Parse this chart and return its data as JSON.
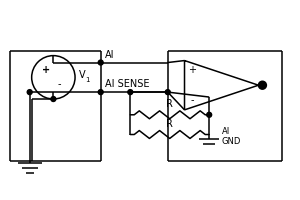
{
  "bg_color": "#ffffff",
  "line_color": "#000000",
  "labels": {
    "AI": "AI",
    "AI_SENSE": "AI SENSE",
    "R_top": "R",
    "R_bot": "R",
    "AI_GND": "AI\nGND",
    "plus": "+",
    "minus": "-",
    "V1": "V",
    "V1_sub": "1"
  },
  "figsize": [
    3.0,
    2.0
  ],
  "dpi": 100,
  "lw": 1.1
}
